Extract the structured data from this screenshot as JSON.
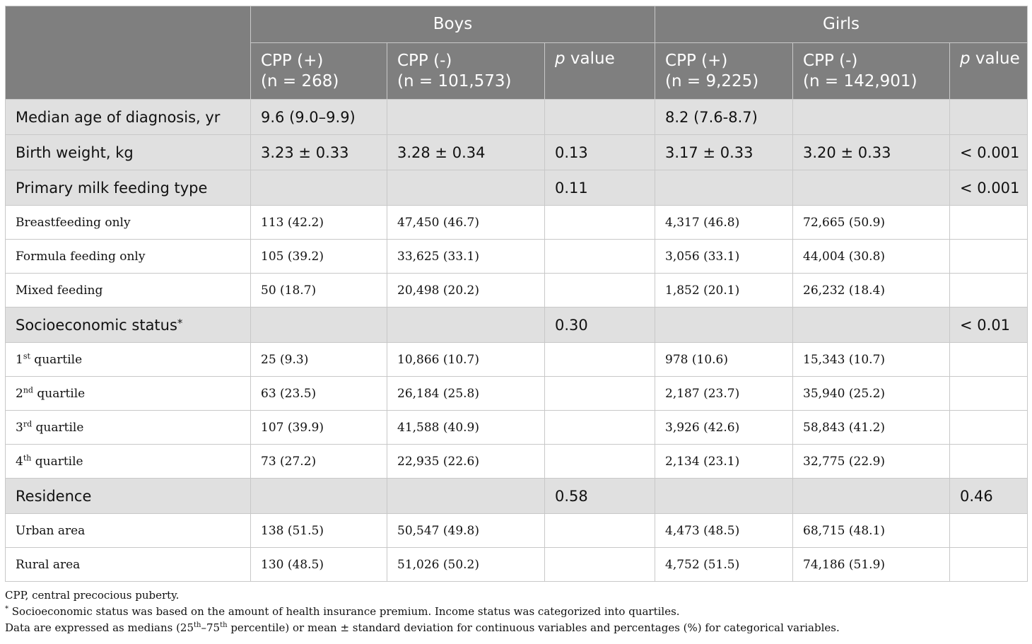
{
  "header": {
    "groups": [
      "Boys",
      "Girls"
    ],
    "boys": {
      "cpp_pos": [
        "CPP (+)",
        "(n = 268)"
      ],
      "cpp_neg": [
        "CPP (-)",
        "(n = 101,573)"
      ],
      "p_label_italic": "p",
      "p_label_rest": " value"
    },
    "girls": {
      "cpp_pos": [
        "CPP (+)",
        "(n = 9,225)"
      ],
      "cpp_neg": [
        "CPP (-)",
        "(n = 142,901)"
      ],
      "p_label_italic": "p",
      "p_label_rest": " value"
    }
  },
  "rows": [
    {
      "type": "section",
      "label": "Median age of diagnosis, yr",
      "cells": [
        "9.6 (9.0–9.9)",
        "",
        "",
        "8.2 (7.6-8.7)",
        "",
        ""
      ]
    },
    {
      "type": "section",
      "label": "Birth weight, kg",
      "cells": [
        "3.23 ± 0.33",
        "3.28 ± 0.34",
        "0.13",
        "3.17 ± 0.33",
        "3.20 ± 0.33",
        "< 0.001"
      ]
    },
    {
      "type": "section",
      "label": "Primary milk feeding type",
      "cells": [
        "",
        "",
        "0.11",
        "",
        "",
        "< 0.001"
      ]
    },
    {
      "type": "sub",
      "label": "Breastfeeding only",
      "cells": [
        "113 (42.2)",
        "47,450 (46.7)",
        "",
        "4,317 (46.8)",
        "72,665 (50.9)",
        ""
      ]
    },
    {
      "type": "sub",
      "label": "Formula feeding only",
      "cells": [
        "105 (39.2)",
        "33,625 (33.1)",
        "",
        "3,056 (33.1)",
        "44,004 (30.8)",
        ""
      ]
    },
    {
      "type": "sub",
      "label": "Mixed feeding",
      "cells": [
        "50 (18.7)",
        "20,498 (20.2)",
        "",
        "1,852 (20.1)",
        "26,232 (18.4)",
        ""
      ]
    },
    {
      "type": "section",
      "label": "Socioeconomic status",
      "marker": "*",
      "cells": [
        "",
        "",
        "0.30",
        "",
        "",
        "< 0.01"
      ]
    },
    {
      "type": "sub",
      "label_num": "1",
      "label_sup": "st",
      "label_rest": " quartile",
      "cells": [
        "25 (9.3)",
        "10,866 (10.7)",
        "",
        "978 (10.6)",
        "15,343 (10.7)",
        ""
      ]
    },
    {
      "type": "sub",
      "label_num": "2",
      "label_sup": "nd",
      "label_rest": " quartile",
      "cells": [
        "63 (23.5)",
        "26,184 (25.8)",
        "",
        "2,187 (23.7)",
        "35,940 (25.2)",
        ""
      ]
    },
    {
      "type": "sub",
      "label_num": "3",
      "label_sup": "rd",
      "label_rest": " quartile",
      "cells": [
        "107 (39.9)",
        "41,588 (40.9)",
        "",
        "3,926 (42.6)",
        "58,843 (41.2)",
        ""
      ]
    },
    {
      "type": "sub",
      "label_num": "4",
      "label_sup": "th",
      "label_rest": " quartile",
      "cells": [
        "73 (27.2)",
        "22,935 (22.6)",
        "",
        "2,134 (23.1)",
        "32,775 (22.9)",
        ""
      ]
    },
    {
      "type": "section",
      "label": "Residence",
      "cells": [
        "",
        "",
        "0.58",
        "",
        "",
        "0.46"
      ]
    },
    {
      "type": "sub",
      "label": "Urban area",
      "cells": [
        "138 (51.5)",
        "50,547 (49.8)",
        "",
        "4,473 (48.5)",
        "68,715 (48.1)",
        ""
      ]
    },
    {
      "type": "sub",
      "label": "Rural area",
      "cells": [
        "130 (48.5)",
        "51,026 (50.2)",
        "",
        "4,752 (51.5)",
        "74,186 (51.9)",
        ""
      ]
    }
  ],
  "footnotes": {
    "abbrev": "CPP, central precocious puberty.",
    "ses_marker": "*",
    "ses": " Socioeconomic status was based on the amount of health insurance premium. Income status was categorized into quartiles.",
    "data_a": "Data are expressed as medians (25",
    "data_sup1": "th",
    "data_b": "–75",
    "data_sup2": "th",
    "data_c": " percentile) or mean ± standard deviation for continuous variables and percentages (%) for categorical variables."
  }
}
